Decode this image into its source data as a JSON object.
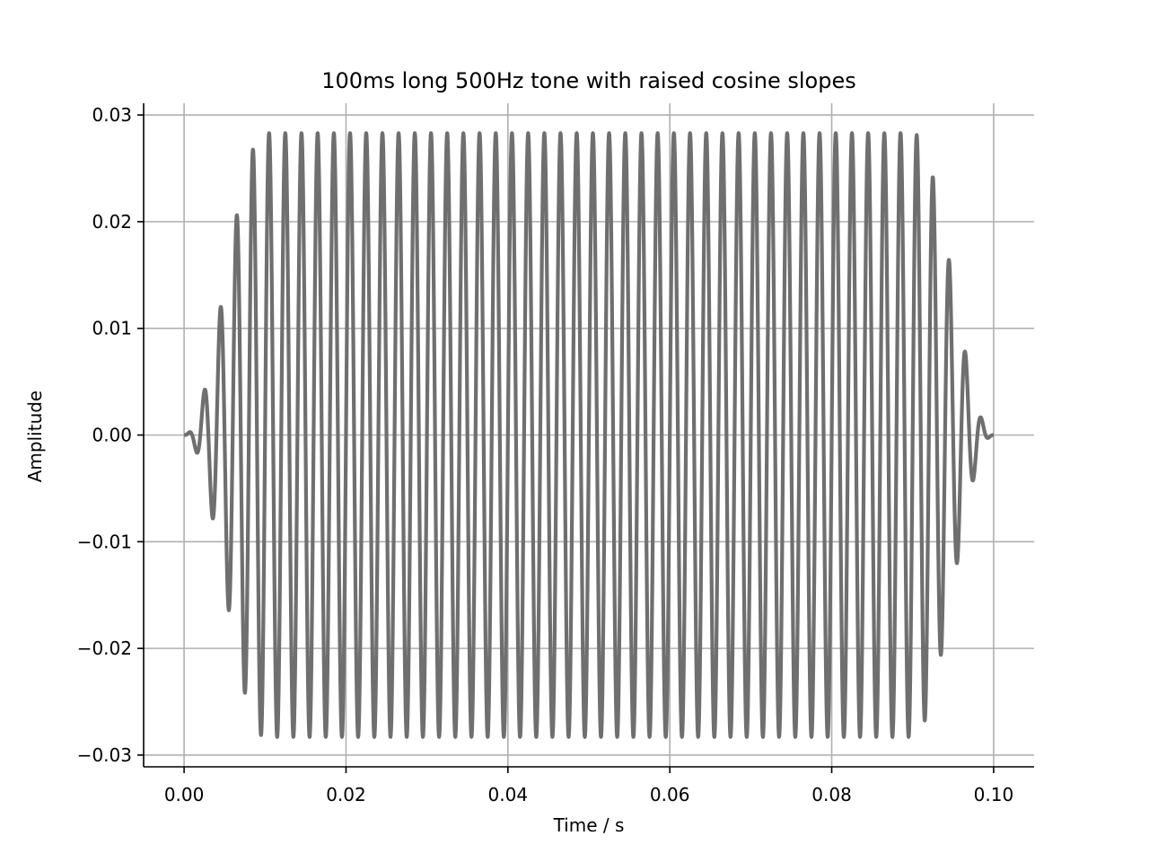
{
  "chart_data": {
    "type": "line",
    "title": "100ms long 500Hz tone with raised cosine slopes",
    "xlabel": "Time / s",
    "ylabel": "Amplitude",
    "xlim": [
      -0.005,
      0.105
    ],
    "ylim": [
      -0.0311,
      0.0311
    ],
    "xticks": [
      0.0,
      0.02,
      0.04,
      0.06,
      0.08,
      0.1
    ],
    "xtick_labels": [
      "0.00",
      "0.02",
      "0.04",
      "0.06",
      "0.08",
      "0.10"
    ],
    "yticks": [
      0.03,
      0.02,
      0.01,
      0.0,
      -0.01,
      -0.02,
      -0.03
    ],
    "ytick_labels": [
      "0.03",
      "0.02",
      "0.01",
      "0.00",
      "−0.01",
      "−0.02",
      "−0.03"
    ],
    "grid": true,
    "series": [
      {
        "name": "",
        "color": "#6f6f6f",
        "signal": {
          "form": "sine tone with raised cosine on/off ramps",
          "frequency_hz": 500,
          "duration_s": 0.1,
          "ramp_s": 0.01,
          "amplitude": 0.0283,
          "start_s": 0.0
        }
      }
    ]
  }
}
